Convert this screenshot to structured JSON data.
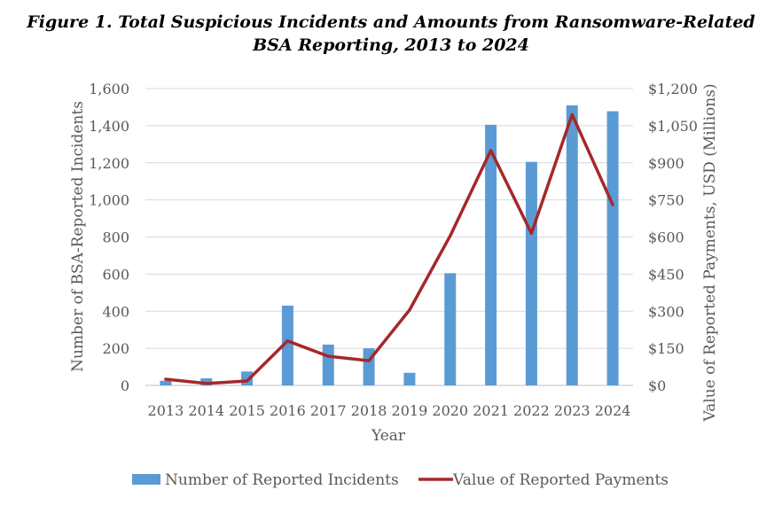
{
  "chart_data": {
    "type": "bar",
    "title": "Figure 1. Total Suspicious Incidents and Amounts from Ransomware-Related BSA Reporting,  2013 to 2024",
    "title_lines": [
      "Figure 1. Total Suspicious Incidents and Amounts from Ransomware-Related",
      "BSA Reporting,  2013 to 2024"
    ],
    "xlabel": "Year",
    "ylabel": "Number of BSA-Reported Incidents",
    "ylabel_right": "Value of Reported Payments, USD (Millions)",
    "categories": [
      "2013",
      "2014",
      "2015",
      "2016",
      "2017",
      "2018",
      "2019",
      "2020",
      "2021",
      "2022",
      "2023",
      "2024"
    ],
    "ylim": [
      0,
      1600
    ],
    "ylim_right": [
      0,
      1200
    ],
    "yticks": [
      "0",
      "200",
      "400",
      "600",
      "800",
      "1,000",
      "1,200",
      "1,400",
      "1,600"
    ],
    "yticks_right": [
      "$0",
      "$150",
      "$300",
      "$450",
      "$600",
      "$750",
      "$900",
      "$1,050",
      "$1,200"
    ],
    "grid": true,
    "legend_position": "bottom",
    "series": [
      {
        "name": "Number of Reported Incidents",
        "type": "bar",
        "axis": "left",
        "color": "#5B9BD5",
        "values": [
          25,
          38,
          75,
          430,
          220,
          200,
          68,
          605,
          1405,
          1205,
          1510,
          1478
        ]
      },
      {
        "name": "Value of Reported Payments",
        "type": "line",
        "axis": "right",
        "color": "#A5282A",
        "values": [
          25,
          8,
          18,
          180,
          118,
          100,
          305,
          605,
          950,
          615,
          1095,
          730
        ]
      }
    ]
  }
}
